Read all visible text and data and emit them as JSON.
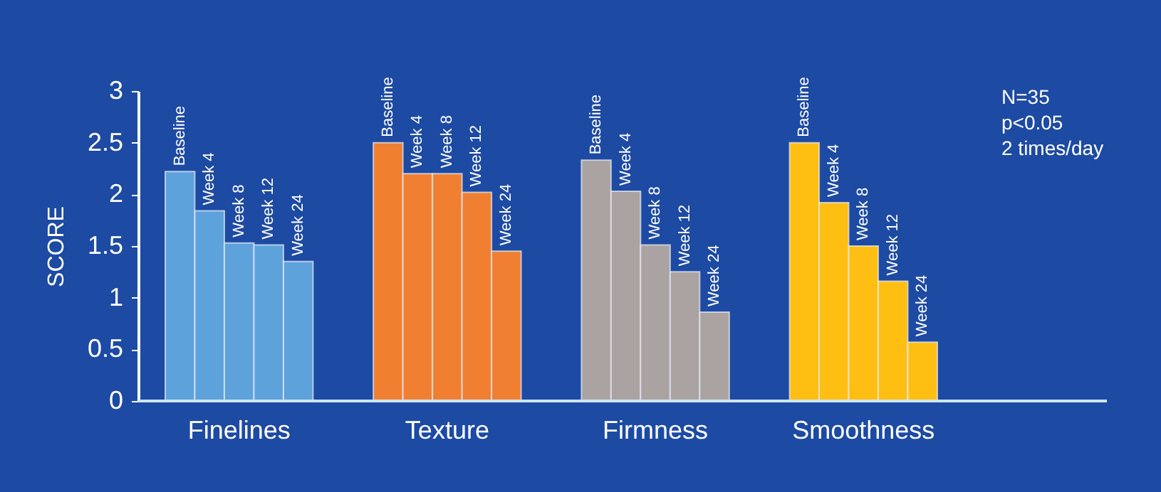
{
  "chart_data": {
    "type": "bar",
    "categories": [
      "Finelines",
      "Texture",
      "Firmness",
      "Smoothness"
    ],
    "series": [
      {
        "name": "Baseline",
        "values": [
          2.22,
          2.5,
          2.33,
          2.5
        ],
        "colors": [
          "#5ea2db",
          "#f07f32",
          "#aaa3a1",
          "#ffbf12"
        ]
      },
      {
        "name": "Week 4",
        "values": [
          1.84,
          2.2,
          2.03,
          1.92
        ],
        "colors": [
          "#5ea2db",
          "#f07f32",
          "#aaa3a1",
          "#ffbf12"
        ]
      },
      {
        "name": "Week 8",
        "values": [
          1.53,
          2.2,
          1.51,
          1.5
        ],
        "colors": [
          "#5ea2db",
          "#f07f32",
          "#aaa3a1",
          "#ffbf12"
        ]
      },
      {
        "name": "Week 12",
        "values": [
          1.51,
          2.02,
          1.25,
          1.16
        ],
        "colors": [
          "#5ea2db",
          "#f07f32",
          "#aaa3a1",
          "#ffbf12"
        ]
      },
      {
        "name": "Week 24",
        "values": [
          1.35,
          1.45,
          0.86,
          0.57
        ],
        "colors": [
          "#5ea2db",
          "#f07f32",
          "#aaa3a1",
          "#ffbf12"
        ]
      }
    ],
    "ylabel": "SCORE",
    "ylim": [
      0,
      3
    ],
    "yticks": [
      0,
      0.5,
      1,
      1.5,
      2,
      2.5,
      3
    ],
    "annotations": [
      "N=35",
      "p<0.05",
      "2 times/day"
    ],
    "grid": false
  }
}
